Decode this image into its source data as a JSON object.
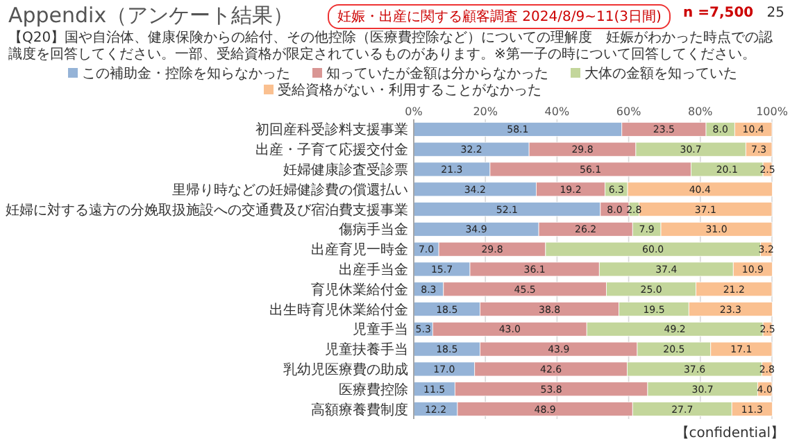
{
  "chart_data": {
    "type": "bar",
    "orientation": "horizontal",
    "stacked": true,
    "title": "Appendix（アンケート結果）",
    "subtitle": "【Q20】国や自治体、健康保険からの給付、その他控除（医療費控除など）についての理解度　妊娠がわかった時点での認識度を回答してください。一部、受給資格が限定されているものがあります。※第一子の時について回答してください。",
    "annotations": [
      "妊娠・出産に関する顧客調査 2024/8/9~11(3日間)",
      "n =7,500",
      "25",
      "【confidential】"
    ],
    "categories": [
      "初回産科受診料支援事業",
      "出産・子育て応援交付金",
      "妊婦健康診査受診票",
      "里帰り時などの妊婦健診費の償還払い",
      "妊婦に対する遠方の分娩取扱施設への交通費及び宿泊費支援事業",
      "傷病手当金",
      "出産育児一時金",
      "出産手当金",
      "育児休業給付金",
      "出生時育児休業給付金",
      "児童手当",
      "児童扶養手当",
      "乳幼児医療費の助成",
      "医療費控除",
      "高額療養費制度"
    ],
    "series": [
      {
        "name": "この補助金・控除を知らなかった",
        "color": "#95b3d7",
        "values": [
          58.1,
          32.2,
          21.3,
          34.2,
          52.1,
          34.9,
          7.0,
          15.7,
          8.3,
          18.5,
          5.3,
          18.5,
          17.0,
          11.5,
          12.2
        ],
        "value_labels": [
          "58.1",
          "32.2",
          "21.3",
          "34.2",
          "52.1",
          "34.9",
          "7.0",
          "15.7",
          "8.3",
          "18.5",
          "5.3",
          "18.5",
          "17.0",
          "11.5",
          "12.2"
        ]
      },
      {
        "name": "知っていたが金額は分からなかった",
        "color": "#d99694",
        "values": [
          23.5,
          29.8,
          56.1,
          19.2,
          8.0,
          26.2,
          29.8,
          36.1,
          45.5,
          38.8,
          43.0,
          43.9,
          42.6,
          53.8,
          48.9
        ],
        "value_labels": [
          "23.5",
          "29.8",
          "56.1",
          "19.2",
          "8.0",
          "26.2",
          "29.8",
          "36.1",
          "45.5",
          "38.8",
          "43.0",
          "43.9",
          "42.6",
          "53.8",
          "48.9"
        ]
      },
      {
        "name": "大体の金額を知っていた",
        "color": "#c3d69b",
        "values": [
          8.0,
          30.7,
          20.1,
          6.3,
          2.8,
          7.9,
          60.0,
          37.4,
          25.0,
          19.5,
          49.2,
          20.5,
          37.6,
          30.7,
          27.7
        ],
        "value_labels": [
          "8.0",
          "30.7",
          "20.1",
          "6.3",
          "2.8",
          "7.9",
          "60.0",
          "37.4",
          "25.0",
          "19.5",
          "49.2",
          "20.5",
          "37.6",
          "30.7",
          "27.7"
        ]
      },
      {
        "name": "受給資格がない・利用することがなかった",
        "color": "#fac090",
        "values": [
          10.4,
          7.3,
          2.5,
          40.4,
          37.1,
          31.0,
          3.2,
          10.9,
          21.2,
          23.3,
          2.5,
          17.1,
          2.8,
          4.0,
          11.3
        ],
        "value_labels": [
          "10.4",
          "7.3",
          "2.5",
          "40.4",
          "37.1",
          "31.0",
          "3.2",
          "10.9",
          "21.2",
          "23.3",
          "2.5",
          "17.1",
          "2.8",
          "4.0",
          "11.3"
        ]
      }
    ],
    "xlim": [
      0,
      100
    ],
    "xticks": [
      {
        "value": 0,
        "label": "0%"
      },
      {
        "value": 20,
        "label": "20%"
      },
      {
        "value": 40,
        "label": "40%"
      },
      {
        "value": 60,
        "label": "60%"
      },
      {
        "value": 80,
        "label": "80%"
      },
      {
        "value": 100,
        "label": "100%"
      }
    ],
    "grid": "x",
    "legend": "top"
  }
}
